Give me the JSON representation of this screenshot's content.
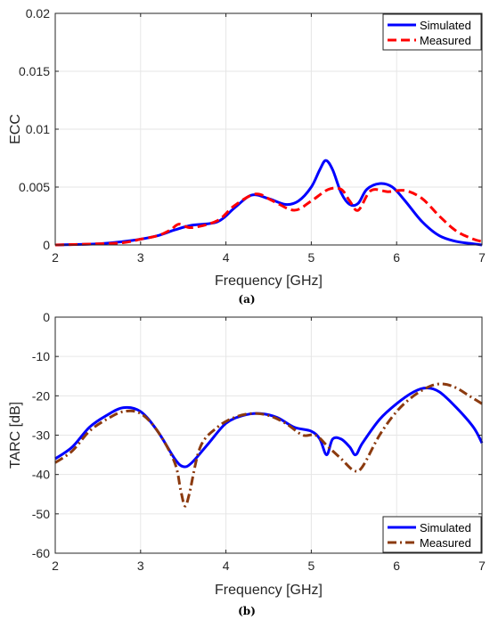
{
  "chart_data": [
    {
      "type": "line",
      "panel": "(a)",
      "xlabel": "Frequency [GHz]",
      "ylabel": "ECC",
      "xlim": [
        2,
        7
      ],
      "ylim": [
        0,
        0.02
      ],
      "xticks": [
        "2",
        "3",
        "4",
        "5",
        "6",
        "7"
      ],
      "yticks": [
        "0",
        "0.005",
        "0.01",
        "0.015",
        "0.02"
      ],
      "xtick_values": [
        2,
        3,
        4,
        5,
        6,
        7
      ],
      "ytick_values": [
        0,
        0.005,
        0.01,
        0.015,
        0.02
      ],
      "grid": true,
      "legend_position": "top-right",
      "series": [
        {
          "name": "Simulated",
          "color": "#0000ff",
          "style": "solid",
          "x": [
            2.0,
            2.5,
            2.8,
            3.0,
            3.2,
            3.4,
            3.6,
            3.9,
            4.1,
            4.3,
            4.5,
            4.7,
            4.85,
            5.0,
            5.1,
            5.17,
            5.25,
            5.35,
            5.45,
            5.55,
            5.65,
            5.8,
            5.95,
            6.1,
            6.3,
            6.5,
            6.7,
            6.9,
            7.0
          ],
          "y": [
            0.0,
            0.0001,
            0.0003,
            0.0005,
            0.0008,
            0.0013,
            0.0017,
            0.002,
            0.0032,
            0.0043,
            0.004,
            0.0035,
            0.0038,
            0.005,
            0.0065,
            0.0073,
            0.0065,
            0.0045,
            0.0035,
            0.0036,
            0.0048,
            0.0053,
            0.005,
            0.0038,
            0.002,
            0.0008,
            0.0003,
            0.0001,
            0.0
          ]
        },
        {
          "name": "Measured",
          "color": "#ff0000",
          "style": "dashed",
          "x": [
            2.0,
            2.5,
            2.8,
            3.0,
            3.2,
            3.35,
            3.45,
            3.6,
            3.9,
            4.1,
            4.35,
            4.55,
            4.8,
            5.0,
            5.2,
            5.35,
            5.45,
            5.55,
            5.7,
            5.9,
            6.1,
            6.3,
            6.5,
            6.7,
            6.9,
            7.0
          ],
          "y": [
            0.0,
            0.0001,
            0.0002,
            0.0005,
            0.0008,
            0.0013,
            0.0018,
            0.0015,
            0.0021,
            0.0034,
            0.0044,
            0.0038,
            0.003,
            0.0038,
            0.0048,
            0.0048,
            0.0038,
            0.003,
            0.0047,
            0.0046,
            0.0047,
            0.004,
            0.0025,
            0.0012,
            0.0005,
            0.0003
          ]
        }
      ]
    },
    {
      "type": "line",
      "panel": "(b)",
      "xlabel": "Frequency [GHz]",
      "ylabel": "TARC [dB]",
      "xlim": [
        2,
        7
      ],
      "ylim": [
        -60,
        0
      ],
      "xticks": [
        "2",
        "3",
        "4",
        "5",
        "6",
        "7"
      ],
      "yticks": [
        "0",
        "-10",
        "-20",
        "-30",
        "-40",
        "-50",
        "-60"
      ],
      "xtick_values": [
        2,
        3,
        4,
        5,
        6,
        7
      ],
      "ytick_values": [
        0,
        -10,
        -20,
        -30,
        -40,
        -50,
        -60
      ],
      "grid": true,
      "legend_position": "bottom-right",
      "series": [
        {
          "name": "Simulated",
          "color": "#0000ff",
          "style": "solid",
          "x": [
            2.0,
            2.2,
            2.4,
            2.6,
            2.8,
            3.0,
            3.2,
            3.4,
            3.5,
            3.6,
            3.8,
            4.0,
            4.2,
            4.4,
            4.6,
            4.8,
            5.0,
            5.1,
            5.18,
            5.25,
            5.35,
            5.45,
            5.52,
            5.6,
            5.8,
            6.0,
            6.2,
            6.35,
            6.5,
            6.7,
            6.9,
            7.0
          ],
          "y": [
            -36,
            -33,
            -28,
            -25,
            -23,
            -24,
            -29,
            -36,
            -38,
            -37,
            -32,
            -27,
            -25,
            -24.5,
            -25.5,
            -28,
            -29,
            -31,
            -35,
            -31,
            -31,
            -33,
            -35,
            -32,
            -26,
            -22,
            -19,
            -18,
            -19,
            -23,
            -28,
            -32
          ]
        },
        {
          "name": "Measured",
          "color": "#8b3a0f",
          "style": "dashdot",
          "x": [
            2.0,
            2.2,
            2.4,
            2.6,
            2.8,
            3.0,
            3.2,
            3.4,
            3.47,
            3.52,
            3.57,
            3.7,
            3.9,
            4.1,
            4.3,
            4.5,
            4.7,
            4.9,
            5.05,
            5.2,
            5.35,
            5.5,
            5.6,
            5.8,
            6.0,
            6.2,
            6.4,
            6.55,
            6.7,
            6.85,
            7.0
          ],
          "y": [
            -37,
            -34,
            -29,
            -26,
            -24,
            -24.5,
            -29,
            -37,
            -44,
            -48,
            -45,
            -33,
            -28,
            -25.5,
            -24.5,
            -25,
            -27,
            -30,
            -30,
            -33,
            -36,
            -39,
            -38,
            -30,
            -24,
            -20,
            -17.5,
            -17,
            -18,
            -20,
            -22
          ]
        }
      ]
    }
  ],
  "captions": [
    "(a)",
    "(b)"
  ]
}
